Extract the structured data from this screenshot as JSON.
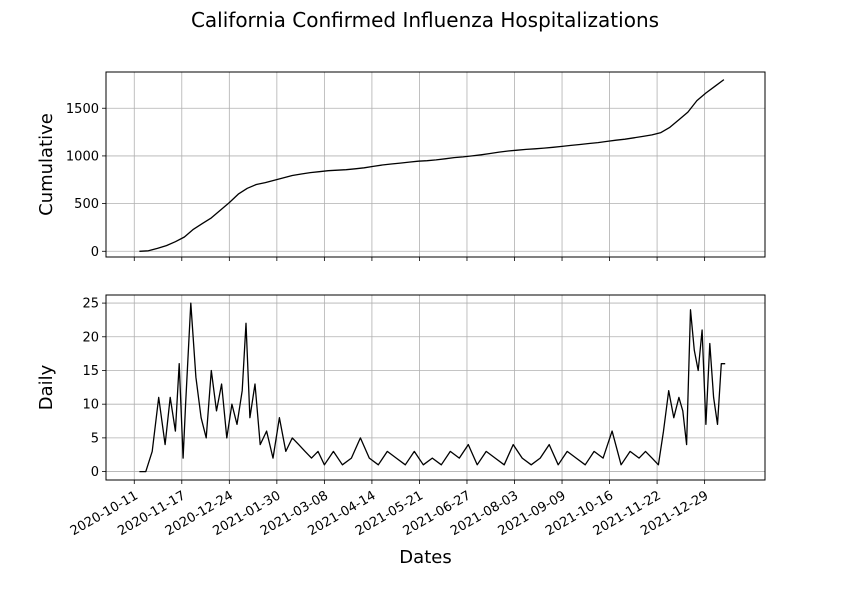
{
  "figure": {
    "title": "California Confirmed Influenza Hospitalizations"
  },
  "chart_data": [
    {
      "type": "line",
      "ylabel": "Cumulative",
      "xlabel": "",
      "ylim": [
        -60,
        1880
      ],
      "yticks": [
        0,
        500,
        1000,
        1500
      ],
      "xticks": [
        "2020-10-11",
        "2020-11-17",
        "2020-12-24",
        "2021-01-30",
        "2021-03-08",
        "2021-04-14",
        "2021-05-21",
        "2021-06-27",
        "2021-08-03",
        "2021-09-09",
        "2021-10-16",
        "2021-11-22",
        "2021-12-29"
      ],
      "xlim": [
        "2020-09-19",
        "2022-02-14"
      ],
      "grid": true,
      "color": "#000000",
      "x": [
        "2020-10-15",
        "2020-10-22",
        "2020-10-29",
        "2020-11-05",
        "2020-11-12",
        "2020-11-19",
        "2020-11-26",
        "2020-12-03",
        "2020-12-10",
        "2020-12-17",
        "2020-12-24",
        "2020-12-31",
        "2021-01-07",
        "2021-01-14",
        "2021-01-21",
        "2021-01-28",
        "2021-02-04",
        "2021-02-11",
        "2021-02-18",
        "2021-02-25",
        "2021-03-04",
        "2021-03-11",
        "2021-03-18",
        "2021-03-25",
        "2021-04-01",
        "2021-04-08",
        "2021-04-15",
        "2021-04-22",
        "2021-04-29",
        "2021-05-06",
        "2021-05-13",
        "2021-05-20",
        "2021-05-27",
        "2021-06-03",
        "2021-06-10",
        "2021-06-17",
        "2021-06-24",
        "2021-07-01",
        "2021-07-08",
        "2021-07-15",
        "2021-07-22",
        "2021-07-29",
        "2021-08-05",
        "2021-08-12",
        "2021-08-19",
        "2021-08-26",
        "2021-09-02",
        "2021-09-09",
        "2021-09-16",
        "2021-09-23",
        "2021-09-30",
        "2021-10-07",
        "2021-10-14",
        "2021-10-21",
        "2021-10-28",
        "2021-11-04",
        "2021-11-11",
        "2021-11-18",
        "2021-11-25",
        "2021-12-02",
        "2021-12-09",
        "2021-12-16",
        "2021-12-23",
        "2021-12-30",
        "2022-01-06",
        "2022-01-13"
      ],
      "values": [
        0,
        5,
        30,
        60,
        100,
        150,
        230,
        290,
        350,
        430,
        510,
        600,
        660,
        700,
        720,
        745,
        770,
        795,
        810,
        825,
        835,
        845,
        850,
        855,
        865,
        875,
        890,
        905,
        915,
        925,
        935,
        945,
        950,
        958,
        970,
        982,
        990,
        1000,
        1012,
        1025,
        1040,
        1052,
        1060,
        1068,
        1075,
        1082,
        1090,
        1100,
        1110,
        1120,
        1130,
        1140,
        1152,
        1165,
        1175,
        1190,
        1205,
        1220,
        1245,
        1300,
        1380,
        1460,
        1580,
        1660,
        1730,
        1800
      ]
    },
    {
      "type": "line",
      "ylabel": "Daily",
      "xlabel": "Dates",
      "ylim": [
        -1.25,
        26.2
      ],
      "yticks": [
        0,
        5,
        10,
        15,
        20,
        25
      ],
      "xticks": [
        "2020-10-11",
        "2020-11-17",
        "2020-12-24",
        "2021-01-30",
        "2021-03-08",
        "2021-04-14",
        "2021-05-21",
        "2021-06-27",
        "2021-08-03",
        "2021-09-09",
        "2021-10-16",
        "2021-11-22",
        "2021-12-29"
      ],
      "xlim": [
        "2020-09-19",
        "2022-02-14"
      ],
      "grid": true,
      "color": "#000000",
      "x": [
        "2020-10-15",
        "2020-10-20",
        "2020-10-25",
        "2020-10-30",
        "2020-11-04",
        "2020-11-08",
        "2020-11-12",
        "2020-11-15",
        "2020-11-18",
        "2020-11-20",
        "2020-11-24",
        "2020-11-28",
        "2020-12-02",
        "2020-12-06",
        "2020-12-10",
        "2020-12-14",
        "2020-12-18",
        "2020-12-22",
        "2020-12-26",
        "2020-12-30",
        "2021-01-03",
        "2021-01-06",
        "2021-01-09",
        "2021-01-13",
        "2021-01-17",
        "2021-01-22",
        "2021-01-27",
        "2021-02-01",
        "2021-02-06",
        "2021-02-11",
        "2021-02-16",
        "2021-02-21",
        "2021-02-26",
        "2021-03-03",
        "2021-03-08",
        "2021-03-15",
        "2021-03-22",
        "2021-03-29",
        "2021-04-05",
        "2021-04-12",
        "2021-04-19",
        "2021-04-26",
        "2021-05-03",
        "2021-05-10",
        "2021-05-17",
        "2021-05-24",
        "2021-05-31",
        "2021-06-07",
        "2021-06-14",
        "2021-06-21",
        "2021-06-28",
        "2021-07-05",
        "2021-07-12",
        "2021-07-19",
        "2021-07-26",
        "2021-08-02",
        "2021-08-09",
        "2021-08-16",
        "2021-08-23",
        "2021-08-30",
        "2021-09-06",
        "2021-09-13",
        "2021-09-20",
        "2021-09-27",
        "2021-10-04",
        "2021-10-11",
        "2021-10-18",
        "2021-10-25",
        "2021-11-01",
        "2021-11-08",
        "2021-11-13",
        "2021-11-18",
        "2021-11-23",
        "2021-11-27",
        "2021-12-01",
        "2021-12-05",
        "2021-12-09",
        "2021-12-12",
        "2021-12-15",
        "2021-12-18",
        "2021-12-21",
        "2021-12-24",
        "2021-12-27",
        "2021-12-30",
        "2022-01-02",
        "2022-01-05",
        "2022-01-08",
        "2022-01-11",
        "2022-01-14"
      ],
      "values": [
        0,
        0,
        3,
        11,
        4,
        11,
        6,
        16,
        2,
        10,
        25,
        14,
        8,
        5,
        15,
        9,
        13,
        5,
        10,
        7,
        12,
        22,
        8,
        13,
        4,
        6,
        2,
        8,
        3,
        5,
        4,
        3,
        2,
        3,
        1,
        3,
        1,
        2,
        5,
        2,
        1,
        3,
        2,
        1,
        3,
        1,
        2,
        1,
        3,
        2,
        4,
        1,
        3,
        2,
        1,
        4,
        2,
        1,
        2,
        4,
        1,
        3,
        2,
        1,
        3,
        2,
        6,
        1,
        3,
        2,
        3,
        2,
        1,
        6,
        12,
        8,
        11,
        9,
        4,
        24,
        18,
        15,
        21,
        7,
        19,
        11,
        7,
        16,
        16
      ]
    }
  ]
}
